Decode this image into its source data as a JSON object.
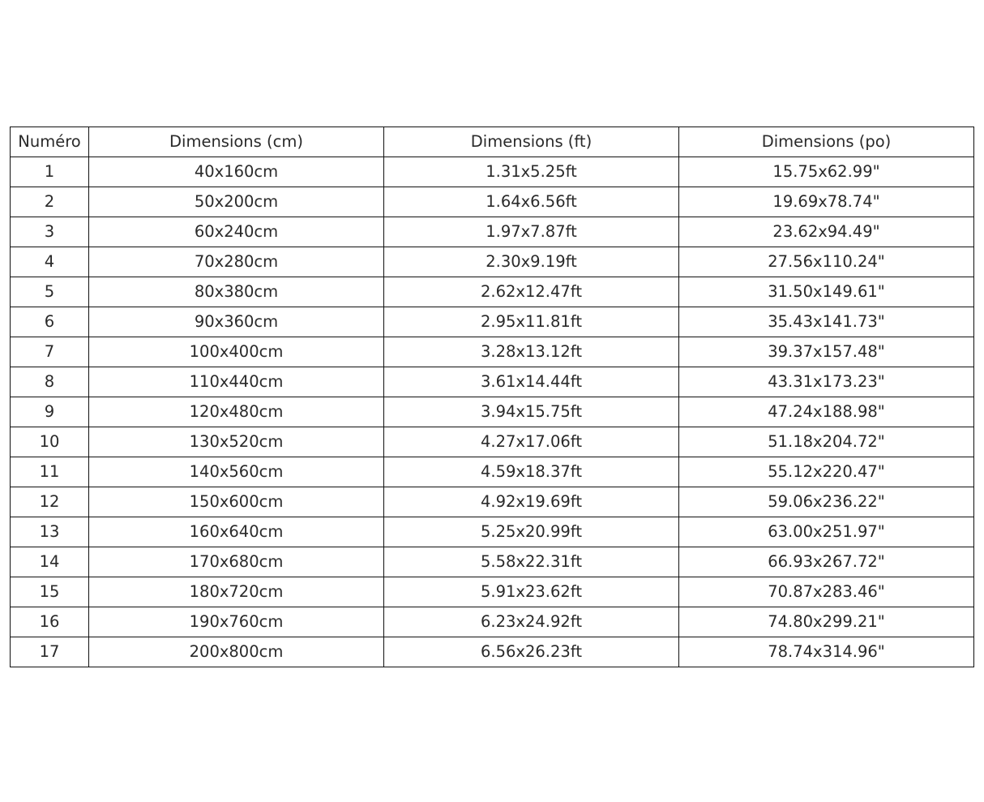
{
  "table": {
    "headers": [
      "Numéro",
      "Dimensions (cm)",
      "Dimensions (ft)",
      "Dimensions (po)"
    ],
    "rows": [
      [
        "1",
        "40x160cm",
        "1.31x5.25ft",
        "15.75x62.99\""
      ],
      [
        "2",
        "50x200cm",
        "1.64x6.56ft",
        "19.69x78.74\""
      ],
      [
        "3",
        "60x240cm",
        "1.97x7.87ft",
        "23.62x94.49\""
      ],
      [
        "4",
        "70x280cm",
        "2.30x9.19ft",
        "27.56x110.24\""
      ],
      [
        "5",
        "80x380cm",
        "2.62x12.47ft",
        "31.50x149.61\""
      ],
      [
        "6",
        "90x360cm",
        "2.95x11.81ft",
        "35.43x141.73\""
      ],
      [
        "7",
        "100x400cm",
        "3.28x13.12ft",
        "39.37x157.48\""
      ],
      [
        "8",
        "110x440cm",
        "3.61x14.44ft",
        "43.31x173.23\""
      ],
      [
        "9",
        "120x480cm",
        "3.94x15.75ft",
        "47.24x188.98\""
      ],
      [
        "10",
        "130x520cm",
        "4.27x17.06ft",
        "51.18x204.72\""
      ],
      [
        "11",
        "140x560cm",
        "4.59x18.37ft",
        "55.12x220.47\""
      ],
      [
        "12",
        "150x600cm",
        "4.92x19.69ft",
        "59.06x236.22\""
      ],
      [
        "13",
        "160x640cm",
        "5.25x20.99ft",
        "63.00x251.97\""
      ],
      [
        "14",
        "170x680cm",
        "5.58x22.31ft",
        "66.93x267.72\""
      ],
      [
        "15",
        "180x720cm",
        "5.91x23.62ft",
        "70.87x283.46\""
      ],
      [
        "16",
        "190x760cm",
        "6.23x24.92ft",
        "74.80x299.21\""
      ],
      [
        "17",
        "200x800cm",
        "6.56x26.23ft",
        "78.74x314.96\""
      ]
    ]
  }
}
